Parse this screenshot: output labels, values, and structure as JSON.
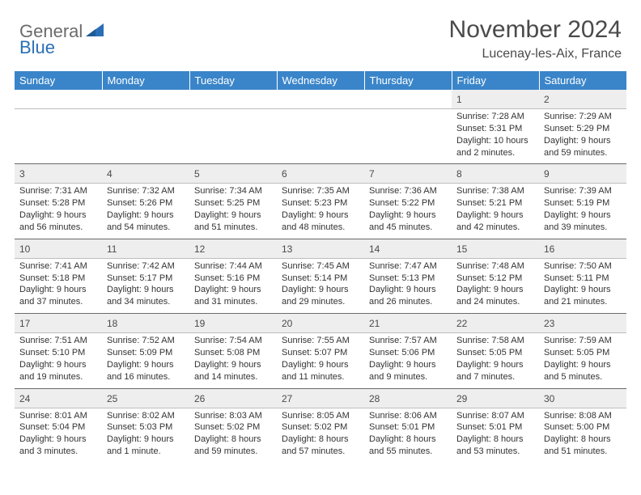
{
  "logo": {
    "general": "General",
    "blue": "Blue"
  },
  "title": "November 2024",
  "location": "Lucenay-les-Aix, France",
  "weekdays": [
    "Sunday",
    "Monday",
    "Tuesday",
    "Wednesday",
    "Thursday",
    "Friday",
    "Saturday"
  ],
  "colors": {
    "header_bg": "#3a85c9",
    "daynum_bg": "#eeeeee",
    "accent_blue": "#2a6fb5"
  },
  "days": {
    "1": {
      "sunrise": "Sunrise: 7:28 AM",
      "sunset": "Sunset: 5:31 PM",
      "daylight": "Daylight: 10 hours and 2 minutes."
    },
    "2": {
      "sunrise": "Sunrise: 7:29 AM",
      "sunset": "Sunset: 5:29 PM",
      "daylight": "Daylight: 9 hours and 59 minutes."
    },
    "3": {
      "sunrise": "Sunrise: 7:31 AM",
      "sunset": "Sunset: 5:28 PM",
      "daylight": "Daylight: 9 hours and 56 minutes."
    },
    "4": {
      "sunrise": "Sunrise: 7:32 AM",
      "sunset": "Sunset: 5:26 PM",
      "daylight": "Daylight: 9 hours and 54 minutes."
    },
    "5": {
      "sunrise": "Sunrise: 7:34 AM",
      "sunset": "Sunset: 5:25 PM",
      "daylight": "Daylight: 9 hours and 51 minutes."
    },
    "6": {
      "sunrise": "Sunrise: 7:35 AM",
      "sunset": "Sunset: 5:23 PM",
      "daylight": "Daylight: 9 hours and 48 minutes."
    },
    "7": {
      "sunrise": "Sunrise: 7:36 AM",
      "sunset": "Sunset: 5:22 PM",
      "daylight": "Daylight: 9 hours and 45 minutes."
    },
    "8": {
      "sunrise": "Sunrise: 7:38 AM",
      "sunset": "Sunset: 5:21 PM",
      "daylight": "Daylight: 9 hours and 42 minutes."
    },
    "9": {
      "sunrise": "Sunrise: 7:39 AM",
      "sunset": "Sunset: 5:19 PM",
      "daylight": "Daylight: 9 hours and 39 minutes."
    },
    "10": {
      "sunrise": "Sunrise: 7:41 AM",
      "sunset": "Sunset: 5:18 PM",
      "daylight": "Daylight: 9 hours and 37 minutes."
    },
    "11": {
      "sunrise": "Sunrise: 7:42 AM",
      "sunset": "Sunset: 5:17 PM",
      "daylight": "Daylight: 9 hours and 34 minutes."
    },
    "12": {
      "sunrise": "Sunrise: 7:44 AM",
      "sunset": "Sunset: 5:16 PM",
      "daylight": "Daylight: 9 hours and 31 minutes."
    },
    "13": {
      "sunrise": "Sunrise: 7:45 AM",
      "sunset": "Sunset: 5:14 PM",
      "daylight": "Daylight: 9 hours and 29 minutes."
    },
    "14": {
      "sunrise": "Sunrise: 7:47 AM",
      "sunset": "Sunset: 5:13 PM",
      "daylight": "Daylight: 9 hours and 26 minutes."
    },
    "15": {
      "sunrise": "Sunrise: 7:48 AM",
      "sunset": "Sunset: 5:12 PM",
      "daylight": "Daylight: 9 hours and 24 minutes."
    },
    "16": {
      "sunrise": "Sunrise: 7:50 AM",
      "sunset": "Sunset: 5:11 PM",
      "daylight": "Daylight: 9 hours and 21 minutes."
    },
    "17": {
      "sunrise": "Sunrise: 7:51 AM",
      "sunset": "Sunset: 5:10 PM",
      "daylight": "Daylight: 9 hours and 19 minutes."
    },
    "18": {
      "sunrise": "Sunrise: 7:52 AM",
      "sunset": "Sunset: 5:09 PM",
      "daylight": "Daylight: 9 hours and 16 minutes."
    },
    "19": {
      "sunrise": "Sunrise: 7:54 AM",
      "sunset": "Sunset: 5:08 PM",
      "daylight": "Daylight: 9 hours and 14 minutes."
    },
    "20": {
      "sunrise": "Sunrise: 7:55 AM",
      "sunset": "Sunset: 5:07 PM",
      "daylight": "Daylight: 9 hours and 11 minutes."
    },
    "21": {
      "sunrise": "Sunrise: 7:57 AM",
      "sunset": "Sunset: 5:06 PM",
      "daylight": "Daylight: 9 hours and 9 minutes."
    },
    "22": {
      "sunrise": "Sunrise: 7:58 AM",
      "sunset": "Sunset: 5:05 PM",
      "daylight": "Daylight: 9 hours and 7 minutes."
    },
    "23": {
      "sunrise": "Sunrise: 7:59 AM",
      "sunset": "Sunset: 5:05 PM",
      "daylight": "Daylight: 9 hours and 5 minutes."
    },
    "24": {
      "sunrise": "Sunrise: 8:01 AM",
      "sunset": "Sunset: 5:04 PM",
      "daylight": "Daylight: 9 hours and 3 minutes."
    },
    "25": {
      "sunrise": "Sunrise: 8:02 AM",
      "sunset": "Sunset: 5:03 PM",
      "daylight": "Daylight: 9 hours and 1 minute."
    },
    "26": {
      "sunrise": "Sunrise: 8:03 AM",
      "sunset": "Sunset: 5:02 PM",
      "daylight": "Daylight: 8 hours and 59 minutes."
    },
    "27": {
      "sunrise": "Sunrise: 8:05 AM",
      "sunset": "Sunset: 5:02 PM",
      "daylight": "Daylight: 8 hours and 57 minutes."
    },
    "28": {
      "sunrise": "Sunrise: 8:06 AM",
      "sunset": "Sunset: 5:01 PM",
      "daylight": "Daylight: 8 hours and 55 minutes."
    },
    "29": {
      "sunrise": "Sunrise: 8:07 AM",
      "sunset": "Sunset: 5:01 PM",
      "daylight": "Daylight: 8 hours and 53 minutes."
    },
    "30": {
      "sunrise": "Sunrise: 8:08 AM",
      "sunset": "Sunset: 5:00 PM",
      "daylight": "Daylight: 8 hours and 51 minutes."
    }
  },
  "weeks": [
    [
      null,
      null,
      null,
      null,
      null,
      "1",
      "2"
    ],
    [
      "3",
      "4",
      "5",
      "6",
      "7",
      "8",
      "9"
    ],
    [
      "10",
      "11",
      "12",
      "13",
      "14",
      "15",
      "16"
    ],
    [
      "17",
      "18",
      "19",
      "20",
      "21",
      "22",
      "23"
    ],
    [
      "24",
      "25",
      "26",
      "27",
      "28",
      "29",
      "30"
    ]
  ]
}
